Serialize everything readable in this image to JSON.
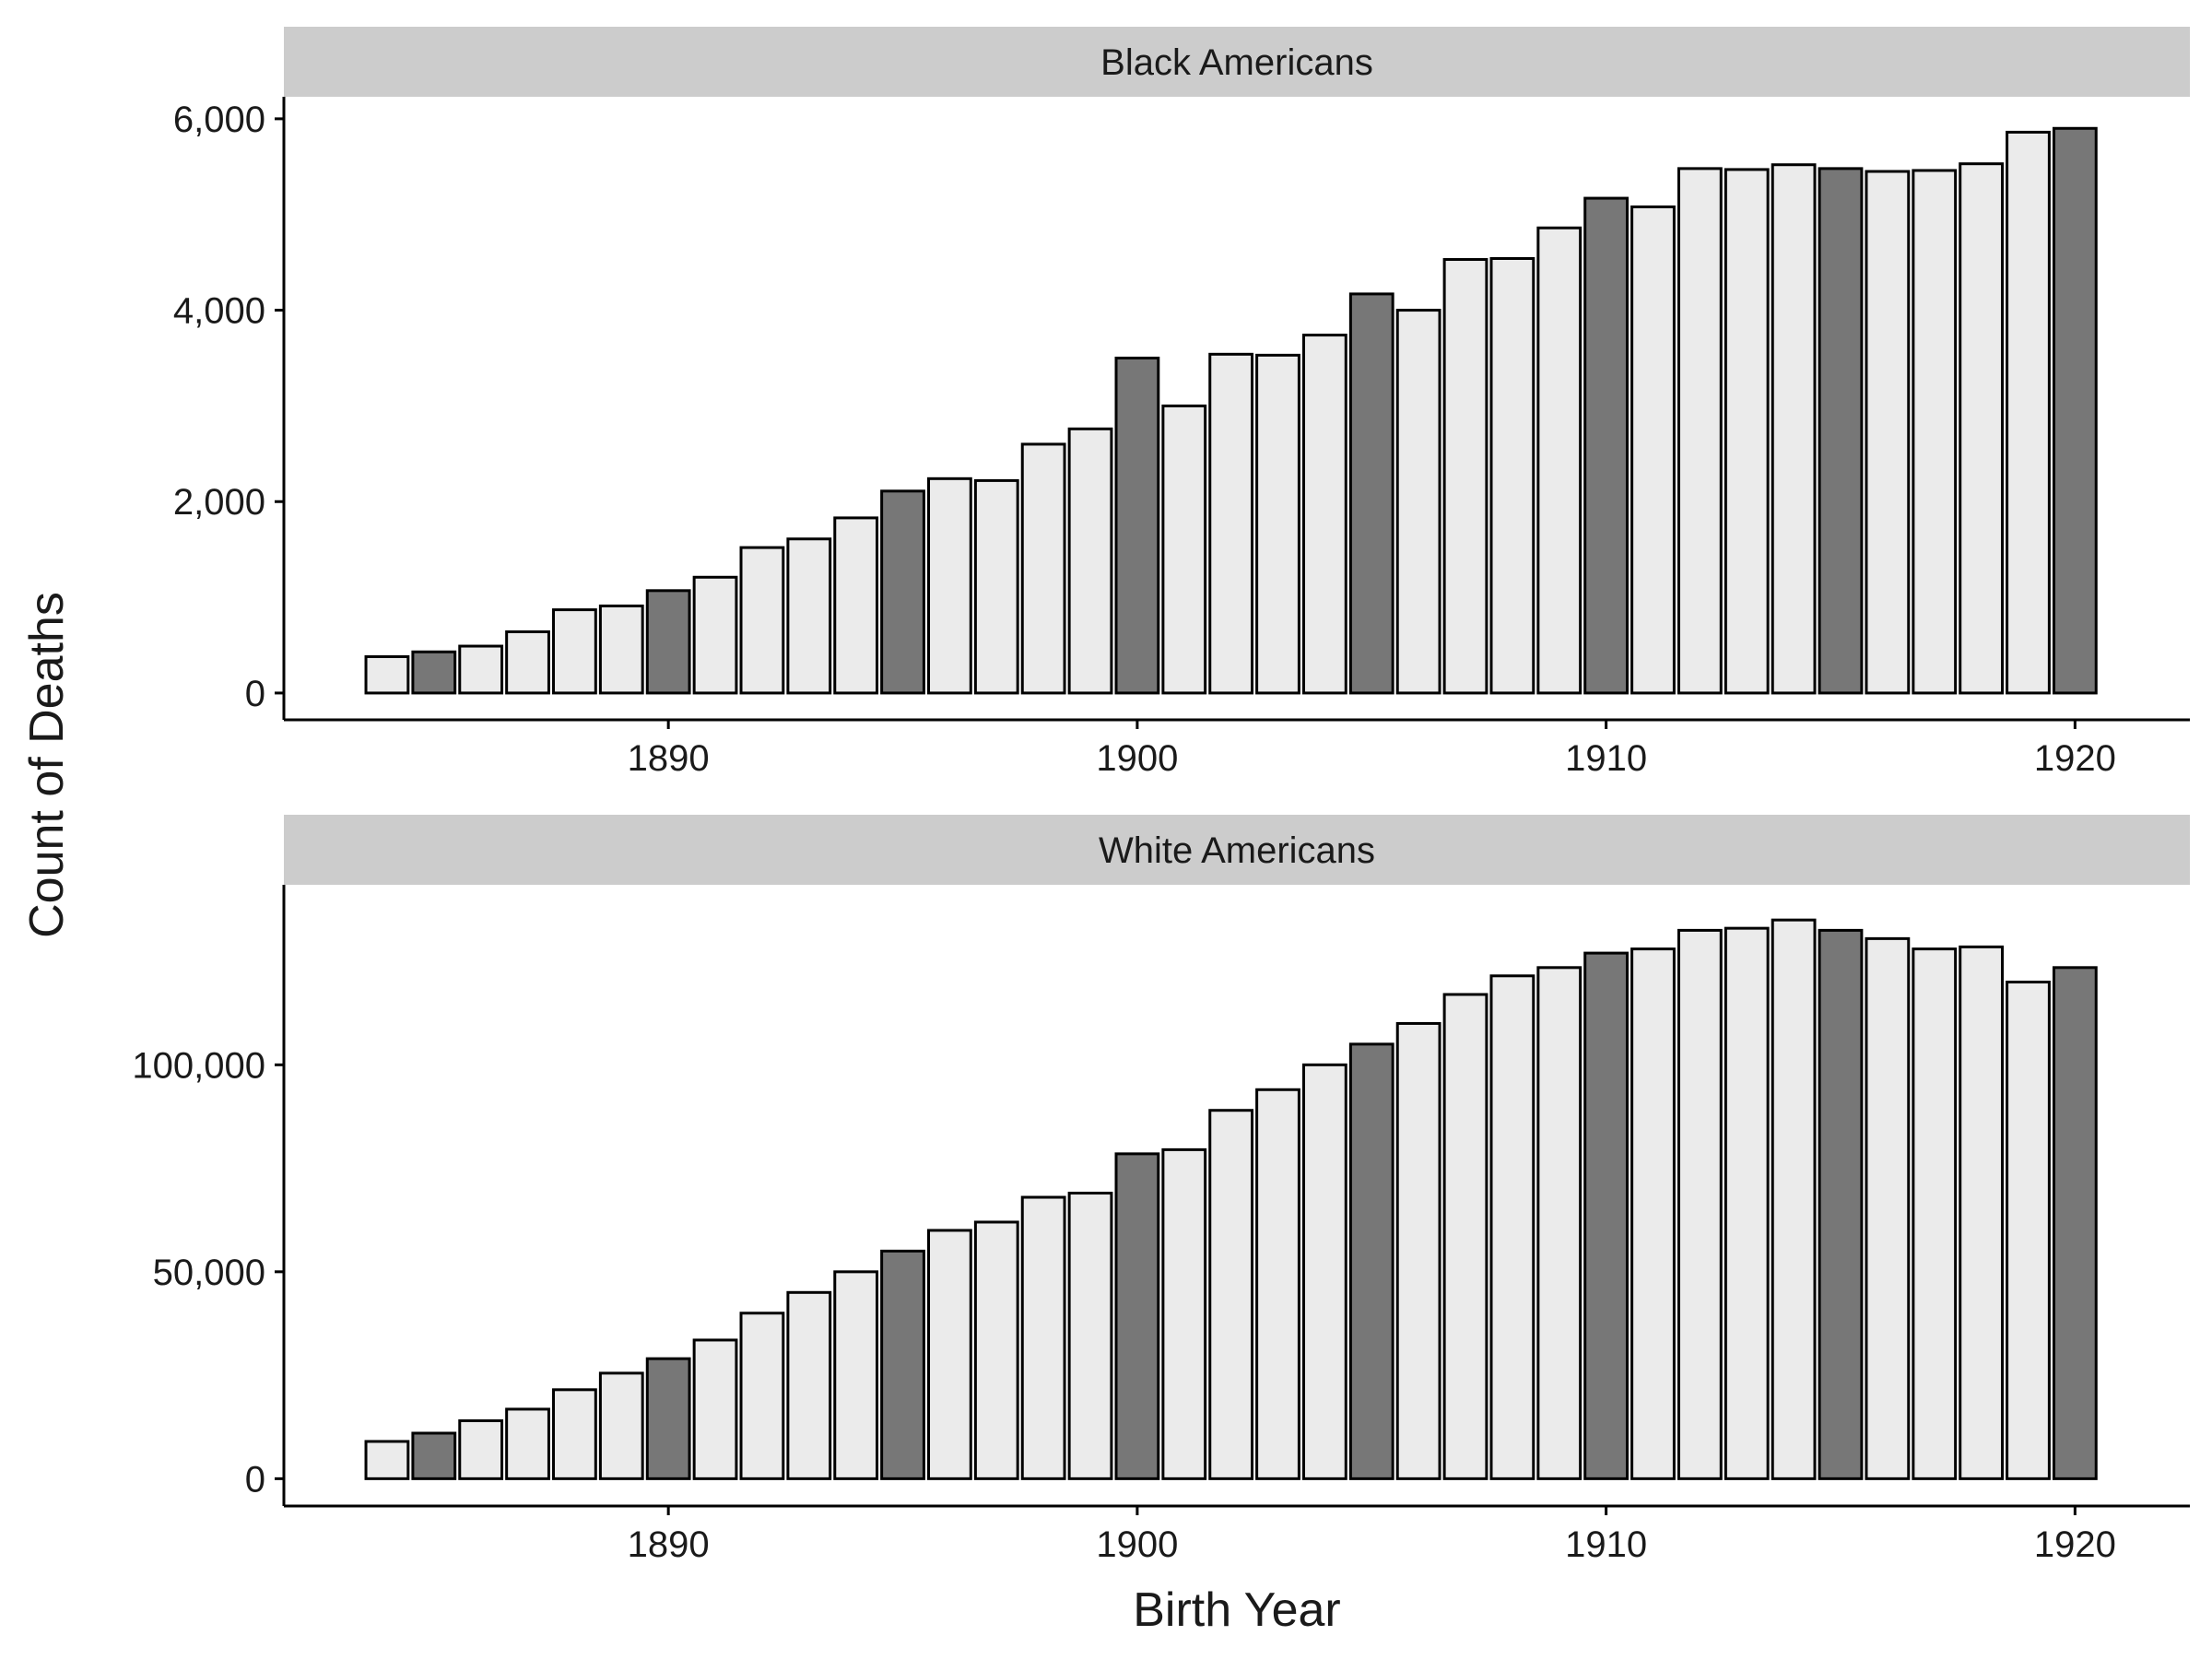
{
  "chart_data": {
    "type": "bar",
    "xlabel": "Birth Year",
    "ylabel": "Count of Deaths",
    "x": [
      1884,
      1885,
      1886,
      1887,
      1888,
      1889,
      1890,
      1891,
      1892,
      1893,
      1894,
      1895,
      1896,
      1897,
      1898,
      1899,
      1900,
      1901,
      1902,
      1903,
      1904,
      1905,
      1906,
      1907,
      1908,
      1909,
      1910,
      1911,
      1912,
      1913,
      1914,
      1915,
      1916,
      1917,
      1918,
      1919,
      1920
    ],
    "x_ticks": [
      1890,
      1900,
      1910,
      1920
    ],
    "x_tick_labels": [
      "1890",
      "1900",
      "1910",
      "1920"
    ],
    "highlighted_x": [
      1885,
      1890,
      1895,
      1900,
      1905,
      1910,
      1915,
      1920
    ],
    "colors": {
      "bar_fill": "#ebebeb",
      "bar_fill_highlight": "#777777",
      "bar_stroke": "#000000",
      "strip_fill": "#cccccc"
    },
    "facets": [
      {
        "strip_label": "Black Americans",
        "y_ticks": [
          0,
          2000,
          4000,
          6000
        ],
        "y_tick_labels": [
          "0",
          "2,000",
          "4,000",
          "6,000"
        ],
        "ylim": [
          -280,
          6230
        ],
        "values": [
          380,
          430,
          490,
          640,
          870,
          910,
          1070,
          1210,
          1520,
          1610,
          1830,
          2110,
          2240,
          2220,
          2600,
          2760,
          3500,
          3000,
          3540,
          3530,
          3740,
          4170,
          4000,
          4530,
          4540,
          4860,
          5170,
          5080,
          5480,
          5470,
          5520,
          5480,
          5450,
          5460,
          5530,
          5860,
          5900
        ]
      },
      {
        "strip_label": "White Americans",
        "y_ticks": [
          0,
          50000,
          100000
        ],
        "y_tick_labels": [
          "0",
          "50,000",
          "100,000"
        ],
        "ylim": [
          -6600,
          143500
        ],
        "values": [
          9000,
          11000,
          14000,
          16800,
          21500,
          25500,
          29000,
          33500,
          40000,
          45000,
          50000,
          55000,
          60000,
          62000,
          68000,
          69000,
          78500,
          79500,
          89000,
          94000,
          100000,
          105000,
          110000,
          117000,
          121500,
          123500,
          127000,
          128000,
          132500,
          133000,
          135000,
          132500,
          130500,
          128000,
          128500,
          120000,
          123500
        ]
      }
    ]
  }
}
